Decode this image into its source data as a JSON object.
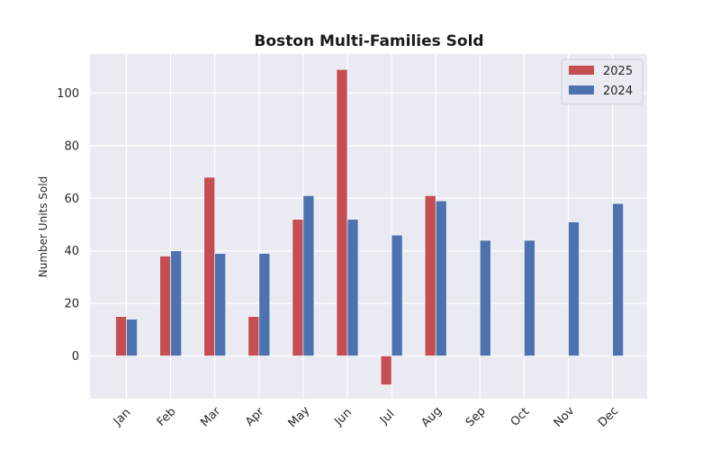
{
  "chart_data": {
    "type": "bar",
    "title": "Boston Multi-Families Sold",
    "xlabel": "",
    "ylabel": "Number Units Sold",
    "categories": [
      "Jan",
      "Feb",
      "Mar",
      "Apr",
      "May",
      "Jun",
      "Jul",
      "Aug",
      "Sep",
      "Oct",
      "Nov",
      "Dec"
    ],
    "series": [
      {
        "name": "2025",
        "color": "#c44e52",
        "values": [
          15,
          38,
          68,
          15,
          52,
          109,
          -11,
          61,
          null,
          null,
          null,
          null
        ]
      },
      {
        "name": "2024",
        "color": "#4c72b0",
        "values": [
          14,
          40,
          39,
          39,
          61,
          52,
          46,
          59,
          44,
          44,
          51,
          58
        ]
      }
    ],
    "ylim": [
      -16,
      115
    ],
    "yticks": [
      0,
      20,
      40,
      60,
      80,
      100
    ],
    "grid": true,
    "legend": "top-right",
    "background": "#eaeaf2"
  }
}
